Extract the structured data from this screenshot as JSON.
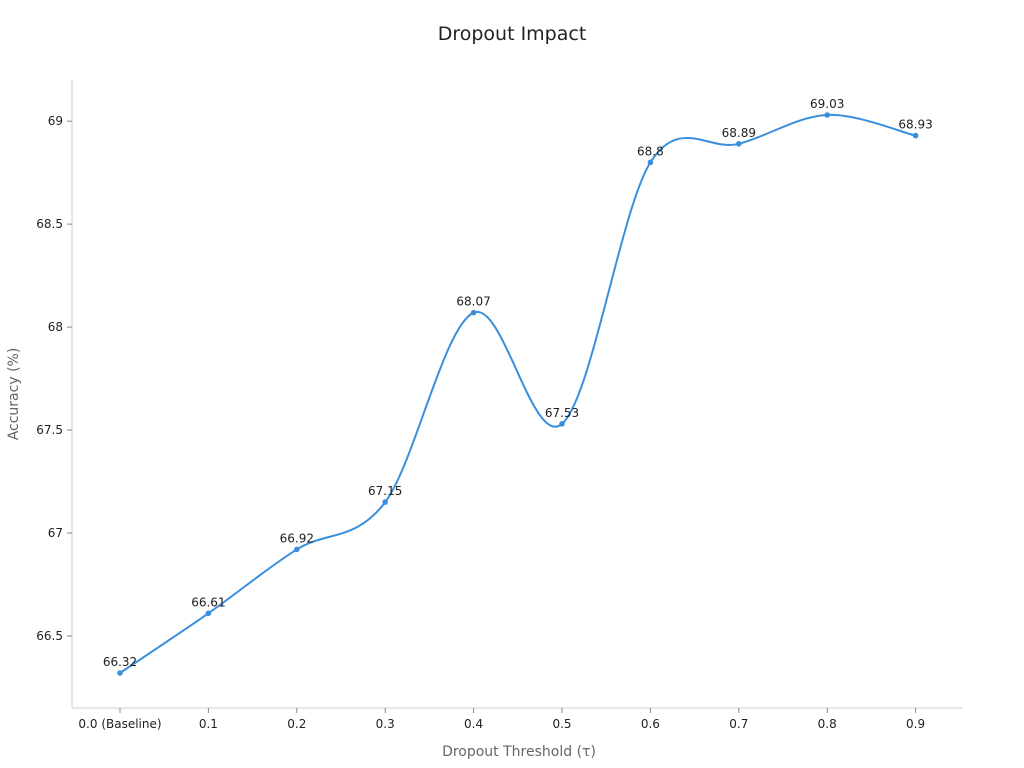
{
  "chart_data": {
    "type": "line",
    "title": "Dropout Impact",
    "xlabel": "Dropout Threshold (τ)",
    "ylabel": "Accuracy (%)",
    "categories": [
      "0.0 (Baseline)",
      "0.1",
      "0.2",
      "0.3",
      "0.4",
      "0.5",
      "0.6",
      "0.7",
      "0.8",
      "0.9"
    ],
    "series": [
      {
        "values": [
          66.32,
          66.61,
          66.92,
          67.15,
          68.07,
          67.53,
          68.8,
          68.89,
          69.03,
          68.93
        ],
        "data_labels": [
          "66.32",
          "66.61",
          "66.92",
          "67.15",
          "68.07",
          "67.53",
          "68.8",
          "68.89",
          "69.03",
          "68.93"
        ],
        "color": "#3a8fdc"
      }
    ],
    "yticks": [
      66.5,
      67,
      67.5,
      68,
      68.5,
      69
    ],
    "ytick_labels": [
      "66.5",
      "67",
      "67.5",
      "68",
      "68.5",
      "69"
    ],
    "ylim": [
      66.15,
      69.2
    ],
    "grid": false,
    "smooth": true
  }
}
